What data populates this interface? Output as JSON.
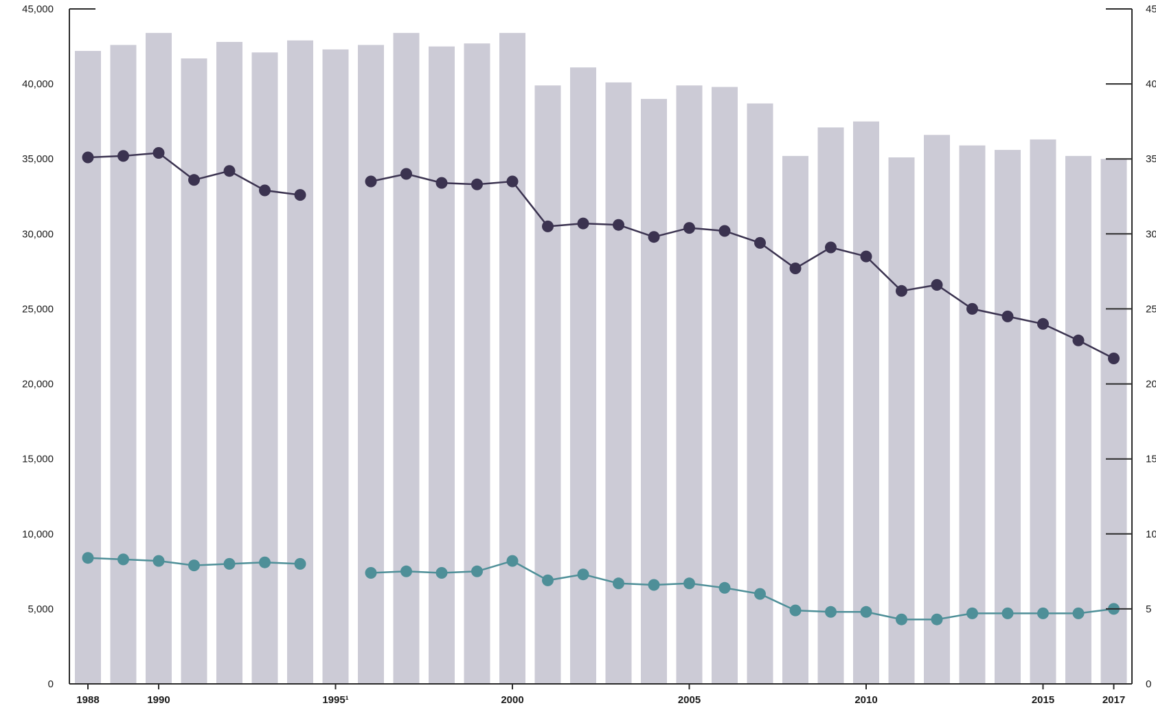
{
  "chart_data": {
    "type": "bar",
    "x": [
      "1988",
      "1989",
      "1990",
      "1991",
      "1992",
      "1993",
      "1994",
      "1995",
      "1996",
      "1997",
      "1998",
      "1999",
      "2000",
      "2001",
      "2002",
      "2003",
      "2004",
      "2005",
      "2006",
      "2007",
      "2008",
      "2009",
      "2010",
      "2011",
      "2012",
      "2013",
      "2014",
      "2015",
      "2016",
      "2017"
    ],
    "x_tick_labels": [
      {
        "year": "1988",
        "label": "1988"
      },
      {
        "year": "1990",
        "label": "1990"
      },
      {
        "year": "1995",
        "label": "1995¹"
      },
      {
        "year": "2000",
        "label": "2000"
      },
      {
        "year": "2005",
        "label": "2005"
      },
      {
        "year": "2010",
        "label": "2010"
      },
      {
        "year": "2015",
        "label": "2015"
      },
      {
        "year": "2017",
        "label": "2017"
      }
    ],
    "series": [
      {
        "kind": "bar",
        "color": "#cccbd6",
        "values": [
          42200,
          42600,
          43400,
          41700,
          42800,
          42100,
          42900,
          42300,
          42600,
          43400,
          42500,
          42700,
          43400,
          39900,
          41100,
          40100,
          39000,
          39900,
          39800,
          38700,
          35200,
          37100,
          37500,
          35100,
          36600,
          35900,
          35600,
          36300,
          35200,
          35000
        ]
      },
      {
        "kind": "line",
        "color": "#3b3350",
        "values": [
          35100,
          35200,
          35400,
          33600,
          34200,
          32900,
          32600,
          null,
          33500,
          34000,
          33400,
          33300,
          33500,
          30500,
          30700,
          30600,
          29800,
          30400,
          30200,
          29400,
          27700,
          29100,
          28500,
          26200,
          26600,
          25000,
          24500,
          24000,
          22900,
          21700
        ]
      },
      {
        "kind": "line",
        "color": "#4e8f98",
        "values": [
          8400,
          8300,
          8200,
          7900,
          8000,
          8100,
          8000,
          null,
          7400,
          7500,
          7400,
          7500,
          8200,
          6900,
          7300,
          6700,
          6600,
          6700,
          6400,
          6000,
          4900,
          4800,
          4800,
          4300,
          4300,
          4700,
          4700,
          4700,
          4700,
          5000
        ]
      }
    ],
    "left_axis": {
      "ylim": [
        0,
        45000
      ],
      "ticks": [
        "0",
        "5,000",
        "10,000",
        "15,000",
        "20,000",
        "25,000",
        "30,000",
        "35,000",
        "40,000",
        "45,000"
      ]
    },
    "right_axis": {
      "ylim": [
        0,
        45000
      ],
      "ticks": [
        "0",
        "5",
        "10",
        "15",
        "20",
        "25",
        "30",
        "35",
        "40",
        "45"
      ]
    },
    "title": "",
    "xlabel": "",
    "ylabel": "",
    "grid": false,
    "legend": "none"
  }
}
